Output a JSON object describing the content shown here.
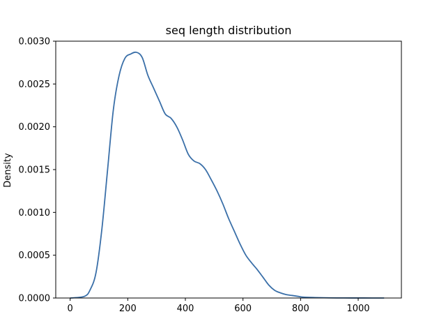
{
  "chart_data": {
    "type": "line",
    "title": "seq length distribution",
    "xlabel": "",
    "ylabel": "Density",
    "xlim": [
      -50,
      1150
    ],
    "ylim": [
      0,
      0.003
    ],
    "x_ticks": [
      0,
      200,
      400,
      600,
      800,
      1000
    ],
    "y_ticks": [
      0.0,
      0.0005,
      0.001,
      0.0015,
      0.002,
      0.0025,
      0.003
    ],
    "x_tick_labels": [
      "0",
      "200",
      "400",
      "600",
      "800",
      "1000"
    ],
    "y_tick_labels": [
      "0.0000",
      "0.0005",
      "0.0010",
      "0.0015",
      "0.0020",
      "0.0025",
      "0.0030"
    ],
    "grid": false,
    "line_color": "#3a6fa8",
    "series": [
      {
        "x": [
          0,
          50,
          70,
          90,
          110,
          130,
          150,
          170,
          190,
          210,
          230,
          250,
          270,
          290,
          310,
          330,
          350,
          370,
          390,
          410,
          430,
          450,
          470,
          490,
          510,
          530,
          550,
          570,
          590,
          610,
          630,
          650,
          670,
          690,
          710,
          730,
          750,
          770,
          790,
          810,
          850,
          900,
          950,
          1000,
          1050,
          1090
        ],
        "y": [
          0.0,
          2e-05,
          0.0001,
          0.0003,
          0.0008,
          0.0015,
          0.0022,
          0.0026,
          0.0028,
          0.00285,
          0.00287,
          0.00281,
          0.0026,
          0.00245,
          0.0023,
          0.00215,
          0.0021,
          0.002,
          0.00185,
          0.00168,
          0.0016,
          0.00157,
          0.0015,
          0.00138,
          0.00125,
          0.0011,
          0.00093,
          0.00078,
          0.00063,
          0.0005,
          0.00041,
          0.00033,
          0.00024,
          0.00015,
          9e-05,
          6e-05,
          4e-05,
          3e-05,
          2e-05,
          1e-05,
          5e-06,
          2e-06,
          1e-06,
          5e-07,
          2e-07,
          0.0
        ]
      }
    ]
  }
}
